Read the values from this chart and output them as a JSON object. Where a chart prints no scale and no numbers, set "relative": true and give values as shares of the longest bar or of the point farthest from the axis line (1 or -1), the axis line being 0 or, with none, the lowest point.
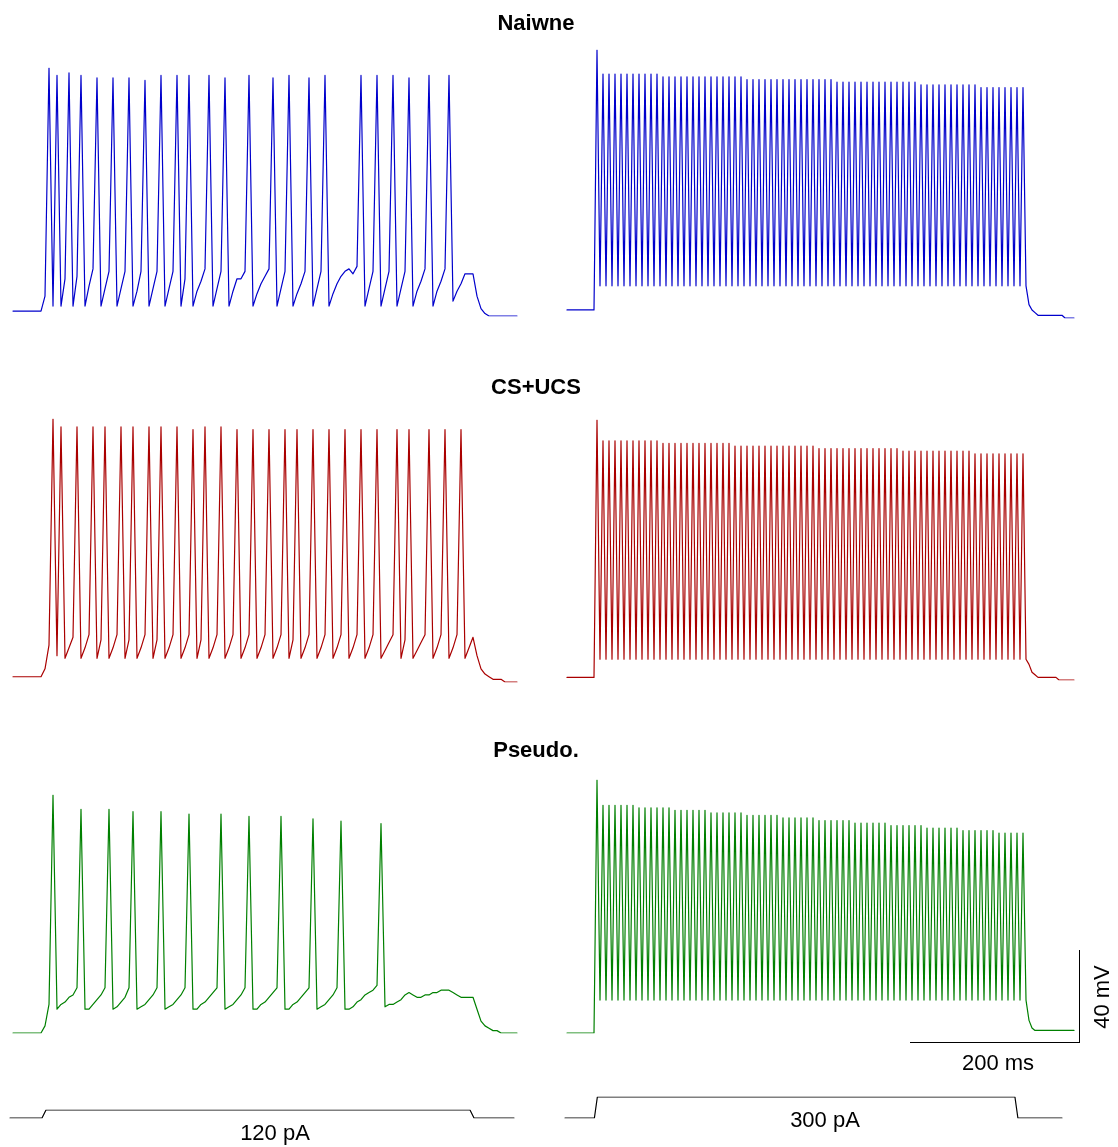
{
  "chart_data": [
    {
      "type": "line",
      "title": "Naiwne",
      "relative": true,
      "color": "#0000cc",
      "categories": [
        null,
        null,
        null,
        null,
        null,
        null,
        null,
        null,
        null,
        null,
        null,
        null,
        null,
        null,
        null,
        null,
        null,
        null,
        null,
        null,
        null,
        null,
        null,
        null,
        null,
        null,
        null,
        null,
        null,
        null,
        null,
        null,
        null,
        null,
        null,
        null,
        null,
        null,
        null,
        null,
        null,
        null,
        null,
        null,
        null,
        null,
        null,
        null,
        null,
        null,
        null,
        null,
        null,
        null,
        null,
        null,
        null,
        null,
        null,
        null,
        null,
        null,
        null,
        null,
        null,
        null,
        null,
        null,
        null,
        null,
        null,
        null,
        null,
        null,
        null,
        null,
        null,
        null,
        null,
        null,
        null,
        null,
        null,
        null,
        null,
        null,
        null,
        null,
        null,
        null,
        null,
        null,
        null,
        null,
        null,
        null,
        null,
        null,
        null,
        null,
        null,
        null,
        null,
        null,
        null,
        null,
        null,
        null,
        null,
        null,
        null,
        null,
        null,
        null,
        null,
        null,
        null,
        null,
        null,
        null,
        null,
        null,
        null,
        null,
        null,
        null,
        null
      ],
      "values": [
        0.02,
        0.02,
        0.02,
        0.02,
        0.02,
        0.02,
        0.02,
        0.02,
        0.08,
        1,
        0.04,
        0.97,
        0.04,
        0.15,
        0.98,
        0.04,
        0.16,
        0.97,
        0.04,
        0.12,
        0.19,
        0.96,
        0.04,
        0.11,
        0.18,
        0.96,
        0.04,
        0.11,
        0.18,
        0.96,
        0.04,
        0.1,
        0.18,
        0.95,
        0.04,
        0.11,
        0.18,
        0.97,
        0.04,
        0.11,
        0.18,
        0.97,
        0.04,
        0.15,
        0.97,
        0.04,
        0.1,
        0.14,
        0.19,
        0.97,
        0.04,
        0.11,
        0.18,
        0.96,
        0.04,
        0.1,
        0.15,
        0.15,
        0.18,
        0.97,
        0.04,
        0.09,
        0.13,
        0.16,
        0.19,
        0.96,
        0.04,
        0.11,
        0.18,
        0.97,
        0.04,
        0.09,
        0.13,
        0.18,
        0.96,
        0.04,
        0.11,
        0.18,
        0.97,
        0.04,
        0.09,
        0.13,
        0.16,
        0.18,
        0.19,
        0.17,
        0.2,
        0.97,
        0.04,
        0.11,
        0.18,
        0.97,
        0.04,
        0.11,
        0.18,
        0.97,
        0.04,
        0.11,
        0.18,
        0.96,
        0.04,
        0.1,
        0.14,
        0.19,
        0.97,
        0.04,
        0.1,
        0.14,
        0.19,
        0.97,
        0.06,
        0.1,
        0.13,
        0.17,
        0.17,
        0.17,
        0.08,
        0.03,
        0.01,
        0,
        0,
        0,
        0,
        0,
        0,
        0,
        0
      ]
    },
    {
      "type": "line",
      "relative": true,
      "color": "#0000cc",
      "categories": [
        null,
        null,
        null,
        null,
        null,
        null,
        null,
        null,
        null,
        null,
        null,
        null,
        null,
        null,
        null,
        null,
        null,
        null,
        null,
        null,
        null,
        null,
        null,
        null,
        null,
        null,
        null,
        null,
        null,
        null,
        null,
        null,
        null,
        null,
        null,
        null,
        null,
        null,
        null,
        null,
        null,
        null,
        null,
        null,
        null,
        null,
        null,
        null,
        null,
        null,
        null,
        null,
        null,
        null,
        null,
        null,
        null,
        null,
        null,
        null,
        null,
        null,
        null,
        null,
        null,
        null,
        null,
        null,
        null,
        null,
        null,
        null,
        null,
        null,
        null,
        null,
        null,
        null,
        null,
        null,
        null,
        null,
        null,
        null,
        null,
        null,
        null,
        null,
        null,
        null,
        null,
        null,
        null,
        null,
        null,
        null,
        null,
        null,
        null,
        null,
        null,
        null,
        null,
        null,
        null,
        null,
        null,
        null,
        null,
        null,
        null,
        null,
        null,
        null,
        null,
        null,
        null,
        null,
        null,
        null,
        null,
        null,
        null,
        null,
        null,
        null,
        null,
        null,
        null,
        null,
        null,
        null,
        null,
        null,
        null,
        null,
        null,
        null,
        null,
        null,
        null,
        null,
        null,
        null,
        null,
        null,
        null,
        null,
        null,
        null,
        null,
        null,
        null,
        null,
        null,
        null,
        null,
        null,
        null,
        null,
        null,
        null,
        null,
        null,
        null,
        null,
        null,
        null,
        null,
        null
      ],
      "values": [
        0.03,
        0.03,
        0.03,
        0.03,
        0.03,
        0.03,
        0.03,
        0.03,
        0.03,
        0.03,
        1,
        0.12,
        0.91,
        0.12,
        0.91,
        0.12,
        0.91,
        0.12,
        0.91,
        0.12,
        0.91,
        0.12,
        0.91,
        0.12,
        0.91,
        0.12,
        0.91,
        0.12,
        0.91,
        0.12,
        0.91,
        0.12,
        0.9,
        0.12,
        0.9,
        0.12,
        0.9,
        0.12,
        0.9,
        0.12,
        0.9,
        0.12,
        0.9,
        0.12,
        0.9,
        0.12,
        0.9,
        0.12,
        0.9,
        0.12,
        0.9,
        0.12,
        0.9,
        0.12,
        0.9,
        0.12,
        0.9,
        0.12,
        0.9,
        0.12,
        0.89,
        0.12,
        0.89,
        0.12,
        0.89,
        0.12,
        0.89,
        0.12,
        0.89,
        0.12,
        0.89,
        0.12,
        0.89,
        0.12,
        0.89,
        0.12,
        0.89,
        0.12,
        0.89,
        0.12,
        0.89,
        0.12,
        0.89,
        0.12,
        0.89,
        0.12,
        0.89,
        0.12,
        0.89,
        0.12,
        0.88,
        0.12,
        0.88,
        0.12,
        0.88,
        0.12,
        0.88,
        0.12,
        0.88,
        0.12,
        0.88,
        0.12,
        0.88,
        0.12,
        0.88,
        0.12,
        0.88,
        0.12,
        0.88,
        0.12,
        0.88,
        0.12,
        0.88,
        0.12,
        0.88,
        0.12,
        0.88,
        0.12,
        0.87,
        0.12,
        0.87,
        0.12,
        0.87,
        0.12,
        0.87,
        0.12,
        0.87,
        0.12,
        0.87,
        0.12,
        0.87,
        0.12,
        0.87,
        0.12,
        0.87,
        0.12,
        0.87,
        0.12,
        0.86,
        0.12,
        0.86,
        0.12,
        0.86,
        0.12,
        0.86,
        0.12,
        0.86,
        0.12,
        0.86,
        0.12,
        0.86,
        0.12,
        0.86,
        0.12,
        0.05,
        0.03,
        0.02,
        0.01,
        0.01,
        0.01,
        0.01,
        0.01,
        0.01,
        0.01,
        0.01,
        0.01,
        0,
        0,
        0,
        0
      ]
    },
    {
      "type": "line",
      "title": "CS+UCS",
      "relative": true,
      "color": "#aa0000",
      "categories": [
        null,
        null,
        null,
        null,
        null,
        null,
        null,
        null,
        null,
        null,
        null,
        null,
        null,
        null,
        null,
        null,
        null,
        null,
        null,
        null,
        null,
        null,
        null,
        null,
        null,
        null,
        null,
        null,
        null,
        null,
        null,
        null,
        null,
        null,
        null,
        null,
        null,
        null,
        null,
        null,
        null,
        null,
        null,
        null,
        null,
        null,
        null,
        null,
        null,
        null,
        null,
        null,
        null,
        null,
        null,
        null,
        null,
        null,
        null,
        null,
        null,
        null,
        null,
        null,
        null,
        null,
        null,
        null,
        null,
        null,
        null,
        null,
        null,
        null,
        null,
        null,
        null,
        null,
        null,
        null,
        null,
        null,
        null,
        null,
        null,
        null,
        null,
        null,
        null,
        null,
        null,
        null,
        null,
        null,
        null,
        null,
        null,
        null,
        null,
        null,
        null,
        null,
        null,
        null,
        null,
        null,
        null,
        null,
        null,
        null,
        null,
        null,
        null,
        null,
        null,
        null,
        null,
        null,
        null,
        null,
        null,
        null,
        null,
        null,
        null,
        null,
        null
      ],
      "values": [
        0.02,
        0.02,
        0.02,
        0.02,
        0.02,
        0.02,
        0.02,
        0.02,
        0.05,
        0.14,
        1,
        0.1,
        0.97,
        0.09,
        0.13,
        0.17,
        0.97,
        0.09,
        0.13,
        0.18,
        0.97,
        0.09,
        0.16,
        0.97,
        0.09,
        0.13,
        0.18,
        0.97,
        0.09,
        0.16,
        0.97,
        0.09,
        0.13,
        0.18,
        0.97,
        0.09,
        0.16,
        0.97,
        0.09,
        0.13,
        0.18,
        0.97,
        0.09,
        0.13,
        0.18,
        0.96,
        0.09,
        0.16,
        0.97,
        0.09,
        0.13,
        0.18,
        0.97,
        0.09,
        0.13,
        0.18,
        0.96,
        0.09,
        0.13,
        0.18,
        0.96,
        0.09,
        0.13,
        0.18,
        0.96,
        0.09,
        0.13,
        0.18,
        0.96,
        0.09,
        0.16,
        0.96,
        0.09,
        0.13,
        0.18,
        0.96,
        0.09,
        0.13,
        0.18,
        0.96,
        0.09,
        0.13,
        0.18,
        0.96,
        0.09,
        0.13,
        0.18,
        0.96,
        0.09,
        0.13,
        0.18,
        0.96,
        0.09,
        0.12,
        0.15,
        0.18,
        0.96,
        0.09,
        0.16,
        0.96,
        0.09,
        0.12,
        0.15,
        0.18,
        0.96,
        0.09,
        0.13,
        0.18,
        0.96,
        0.09,
        0.13,
        0.18,
        0.96,
        0.09,
        0.13,
        0.17,
        0.1,
        0.05,
        0.03,
        0.02,
        0.01,
        0.01,
        0.01,
        0,
        0,
        0,
        0
      ]
    },
    {
      "type": "line",
      "relative": true,
      "color": "#aa0000",
      "categories": [
        null,
        null,
        null,
        null,
        null,
        null,
        null,
        null,
        null,
        null,
        null,
        null,
        null,
        null,
        null,
        null,
        null,
        null,
        null,
        null,
        null,
        null,
        null,
        null,
        null,
        null,
        null,
        null,
        null,
        null,
        null,
        null,
        null,
        null,
        null,
        null,
        null,
        null,
        null,
        null,
        null,
        null,
        null,
        null,
        null,
        null,
        null,
        null,
        null,
        null,
        null,
        null,
        null,
        null,
        null,
        null,
        null,
        null,
        null,
        null,
        null,
        null,
        null,
        null,
        null,
        null,
        null,
        null,
        null,
        null,
        null,
        null,
        null,
        null,
        null,
        null,
        null,
        null,
        null,
        null,
        null,
        null,
        null,
        null,
        null,
        null,
        null,
        null,
        null,
        null,
        null,
        null,
        null,
        null,
        null,
        null,
        null,
        null,
        null,
        null,
        null,
        null,
        null,
        null,
        null,
        null,
        null,
        null,
        null,
        null,
        null,
        null,
        null,
        null,
        null,
        null,
        null,
        null,
        null,
        null,
        null,
        null,
        null,
        null,
        null,
        null,
        null,
        null,
        null,
        null,
        null,
        null,
        null,
        null,
        null,
        null,
        null,
        null,
        null,
        null,
        null,
        null,
        null,
        null,
        null,
        null,
        null,
        null,
        null,
        null,
        null,
        null,
        null,
        null,
        null,
        null,
        null,
        null,
        null,
        null,
        null,
        null,
        null,
        null,
        null,
        null,
        null,
        null,
        null,
        null
      ],
      "values": [
        0.01,
        0.01,
        0.01,
        0.01,
        0.01,
        0.01,
        0.01,
        0.01,
        0.01,
        0.01,
        1,
        0.08,
        0.92,
        0.08,
        0.92,
        0.08,
        0.92,
        0.08,
        0.92,
        0.08,
        0.92,
        0.08,
        0.92,
        0.08,
        0.92,
        0.08,
        0.92,
        0.08,
        0.92,
        0.08,
        0.92,
        0.08,
        0.91,
        0.08,
        0.91,
        0.08,
        0.91,
        0.08,
        0.91,
        0.08,
        0.91,
        0.08,
        0.91,
        0.08,
        0.91,
        0.08,
        0.91,
        0.08,
        0.91,
        0.08,
        0.91,
        0.08,
        0.91,
        0.08,
        0.91,
        0.08,
        0.9,
        0.08,
        0.9,
        0.08,
        0.9,
        0.08,
        0.9,
        0.08,
        0.9,
        0.08,
        0.9,
        0.08,
        0.9,
        0.08,
        0.9,
        0.08,
        0.9,
        0.08,
        0.9,
        0.08,
        0.9,
        0.08,
        0.9,
        0.08,
        0.9,
        0.08,
        0.9,
        0.08,
        0.89,
        0.08,
        0.89,
        0.08,
        0.89,
        0.08,
        0.89,
        0.08,
        0.89,
        0.08,
        0.89,
        0.08,
        0.89,
        0.08,
        0.89,
        0.08,
        0.89,
        0.08,
        0.89,
        0.08,
        0.89,
        0.08,
        0.89,
        0.08,
        0.89,
        0.08,
        0.89,
        0.08,
        0.88,
        0.08,
        0.88,
        0.08,
        0.88,
        0.08,
        0.88,
        0.08,
        0.88,
        0.08,
        0.88,
        0.08,
        0.88,
        0.08,
        0.88,
        0.08,
        0.88,
        0.08,
        0.88,
        0.08,
        0.88,
        0.08,
        0.88,
        0.08,
        0.87,
        0.08,
        0.87,
        0.08,
        0.87,
        0.08,
        0.87,
        0.08,
        0.87,
        0.08,
        0.87,
        0.08,
        0.87,
        0.08,
        0.87,
        0.08,
        0.87,
        0.08,
        0.06,
        0.03,
        0.02,
        0.01,
        0.01,
        0.01,
        0.01,
        0.01,
        0.01,
        0.01,
        0,
        0,
        0,
        0,
        0,
        0
      ]
    },
    {
      "type": "line",
      "title": "Pseudo.",
      "relative": true,
      "color": "#008000",
      "categories": [
        null,
        null,
        null,
        null,
        null,
        null,
        null,
        null,
        null,
        null,
        null,
        null,
        null,
        null,
        null,
        null,
        null,
        null,
        null,
        null,
        null,
        null,
        null,
        null,
        null,
        null,
        null,
        null,
        null,
        null,
        null,
        null,
        null,
        null,
        null,
        null,
        null,
        null,
        null,
        null,
        null,
        null,
        null,
        null,
        null,
        null,
        null,
        null,
        null,
        null,
        null,
        null,
        null,
        null,
        null,
        null,
        null,
        null,
        null,
        null,
        null,
        null,
        null,
        null,
        null,
        null,
        null,
        null,
        null,
        null,
        null,
        null,
        null,
        null,
        null,
        null,
        null,
        null,
        null,
        null,
        null,
        null,
        null,
        null,
        null,
        null,
        null,
        null,
        null,
        null,
        null,
        null,
        null,
        null,
        null,
        null,
        null,
        null,
        null,
        null,
        null,
        null,
        null,
        null,
        null,
        null,
        null,
        null,
        null,
        null,
        null,
        null,
        null,
        null,
        null,
        null,
        null,
        null,
        null,
        null,
        null,
        null,
        null,
        null,
        null,
        null,
        null
      ],
      "values": [
        0,
        0,
        0,
        0,
        0,
        0,
        0,
        0,
        0.03,
        0.12,
        1,
        0.1,
        0.12,
        0.13,
        0.15,
        0.16,
        0.19,
        0.94,
        0.1,
        0.1,
        0.12,
        0.14,
        0.16,
        0.19,
        0.94,
        0.1,
        0.11,
        0.13,
        0.15,
        0.19,
        0.93,
        0.1,
        0.11,
        0.12,
        0.14,
        0.16,
        0.19,
        0.93,
        0.1,
        0.11,
        0.12,
        0.14,
        0.16,
        0.19,
        0.92,
        0.1,
        0.1,
        0.12,
        0.13,
        0.15,
        0.17,
        0.19,
        0.92,
        0.1,
        0.11,
        0.12,
        0.14,
        0.16,
        0.19,
        0.91,
        0.1,
        0.1,
        0.12,
        0.13,
        0.15,
        0.17,
        0.19,
        0.91,
        0.1,
        0.1,
        0.12,
        0.13,
        0.15,
        0.17,
        0.19,
        0.9,
        0.1,
        0.11,
        0.12,
        0.14,
        0.16,
        0.19,
        0.89,
        0.1,
        0.1,
        0.11,
        0.13,
        0.14,
        0.16,
        0.17,
        0.18,
        0.2,
        0.88,
        0.11,
        0.12,
        0.12,
        0.13,
        0.14,
        0.16,
        0.17,
        0.16,
        0.15,
        0.15,
        0.16,
        0.16,
        0.17,
        0.17,
        0.18,
        0.18,
        0.18,
        0.17,
        0.16,
        0.15,
        0.15,
        0.15,
        0.15,
        0.1,
        0.05,
        0.03,
        0.02,
        0.01,
        0.01,
        0,
        0,
        0,
        0,
        0
      ]
    },
    {
      "type": "line",
      "relative": true,
      "color": "#008000",
      "annotations": [
        "40 mV",
        "200 ms"
      ],
      "categories": [
        null,
        null,
        null,
        null,
        null,
        null,
        null,
        null,
        null,
        null,
        null,
        null,
        null,
        null,
        null,
        null,
        null,
        null,
        null,
        null,
        null,
        null,
        null,
        null,
        null,
        null,
        null,
        null,
        null,
        null,
        null,
        null,
        null,
        null,
        null,
        null,
        null,
        null,
        null,
        null,
        null,
        null,
        null,
        null,
        null,
        null,
        null,
        null,
        null,
        null,
        null,
        null,
        null,
        null,
        null,
        null,
        null,
        null,
        null,
        null,
        null,
        null,
        null,
        null,
        null,
        null,
        null,
        null,
        null,
        null,
        null,
        null,
        null,
        null,
        null,
        null,
        null,
        null,
        null,
        null,
        null,
        null,
        null,
        null,
        null,
        null,
        null,
        null,
        null,
        null,
        null,
        null,
        null,
        null,
        null,
        null,
        null,
        null,
        null,
        null,
        null,
        null,
        null,
        null,
        null,
        null,
        null,
        null,
        null,
        null,
        null,
        null,
        null,
        null,
        null,
        null,
        null,
        null,
        null,
        null,
        null,
        null,
        null,
        null,
        null,
        null,
        null,
        null,
        null,
        null,
        null,
        null,
        null,
        null,
        null,
        null,
        null,
        null,
        null,
        null,
        null,
        null,
        null,
        null,
        null,
        null,
        null,
        null,
        null,
        null,
        null,
        null,
        null,
        null,
        null,
        null,
        null,
        null,
        null,
        null,
        null,
        null,
        null,
        null,
        null,
        null,
        null,
        null,
        null,
        null
      ],
      "values": [
        0,
        0,
        0,
        0,
        0,
        0,
        0,
        0,
        0,
        0,
        1,
        0.13,
        0.9,
        0.13,
        0.9,
        0.13,
        0.9,
        0.13,
        0.9,
        0.13,
        0.9,
        0.13,
        0.9,
        0.13,
        0.89,
        0.13,
        0.89,
        0.13,
        0.89,
        0.13,
        0.89,
        0.13,
        0.89,
        0.13,
        0.89,
        0.13,
        0.88,
        0.13,
        0.88,
        0.13,
        0.88,
        0.13,
        0.88,
        0.13,
        0.88,
        0.13,
        0.88,
        0.13,
        0.87,
        0.13,
        0.87,
        0.13,
        0.87,
        0.13,
        0.87,
        0.13,
        0.87,
        0.13,
        0.87,
        0.13,
        0.86,
        0.13,
        0.86,
        0.13,
        0.86,
        0.13,
        0.86,
        0.13,
        0.86,
        0.13,
        0.86,
        0.13,
        0.85,
        0.13,
        0.85,
        0.13,
        0.85,
        0.13,
        0.85,
        0.13,
        0.85,
        0.13,
        0.85,
        0.13,
        0.84,
        0.13,
        0.84,
        0.13,
        0.84,
        0.13,
        0.84,
        0.13,
        0.84,
        0.13,
        0.84,
        0.13,
        0.83,
        0.13,
        0.83,
        0.13,
        0.83,
        0.13,
        0.83,
        0.13,
        0.83,
        0.13,
        0.83,
        0.13,
        0.82,
        0.13,
        0.82,
        0.13,
        0.82,
        0.13,
        0.82,
        0.13,
        0.82,
        0.13,
        0.82,
        0.13,
        0.81,
        0.13,
        0.81,
        0.13,
        0.81,
        0.13,
        0.81,
        0.13,
        0.81,
        0.13,
        0.81,
        0.13,
        0.8,
        0.13,
        0.8,
        0.13,
        0.8,
        0.13,
        0.8,
        0.13,
        0.8,
        0.13,
        0.8,
        0.13,
        0.79,
        0.13,
        0.79,
        0.13,
        0.79,
        0.13,
        0.79,
        0.13,
        0.79,
        0.13,
        0.05,
        0.02,
        0.01,
        0.01,
        0.01,
        0.01,
        0.01,
        0.01,
        0.01,
        0.01,
        0.01,
        0.01,
        0.01,
        0.01,
        0.01,
        0.01
      ]
    },
    {
      "type": "line",
      "relative": true,
      "color": "#000000",
      "annotations": [
        "120 pA"
      ],
      "categories": [
        null,
        null,
        null,
        null,
        null,
        null,
        null,
        null,
        null,
        null,
        null,
        null,
        null,
        null,
        null,
        null,
        null,
        null,
        null,
        null,
        null,
        null,
        null,
        null,
        null,
        null,
        null,
        null,
        null,
        null,
        null,
        null,
        null,
        null,
        null,
        null,
        null,
        null,
        null,
        null,
        null,
        null,
        null,
        null,
        null,
        null,
        null,
        null,
        null,
        null,
        null,
        null,
        null,
        null,
        null,
        null,
        null,
        null,
        null,
        null,
        null,
        null,
        null,
        null,
        null,
        null,
        null,
        null,
        null,
        null,
        null,
        null,
        null,
        null,
        null,
        null,
        null,
        null,
        null,
        null,
        null,
        null,
        null,
        null,
        null,
        null,
        null,
        null,
        null,
        null,
        null,
        null,
        null,
        null,
        null,
        null,
        null,
        null,
        null,
        null,
        null,
        null,
        null,
        null,
        null,
        null,
        null,
        null,
        null,
        null,
        null,
        null,
        null,
        null,
        null,
        null,
        null,
        null,
        null,
        null,
        null,
        null,
        null,
        null,
        null,
        null,
        null
      ],
      "values": [
        0,
        0,
        0,
        0,
        0,
        0,
        0,
        0,
        0,
        1,
        1,
        1,
        1,
        1,
        1,
        1,
        1,
        1,
        1,
        1,
        1,
        1,
        1,
        1,
        1,
        1,
        1,
        1,
        1,
        1,
        1,
        1,
        1,
        1,
        1,
        1,
        1,
        1,
        1,
        1,
        1,
        1,
        1,
        1,
        1,
        1,
        1,
        1,
        1,
        1,
        1,
        1,
        1,
        1,
        1,
        1,
        1,
        1,
        1,
        1,
        1,
        1,
        1,
        1,
        1,
        1,
        1,
        1,
        1,
        1,
        1,
        1,
        1,
        1,
        1,
        1,
        1,
        1,
        1,
        1,
        1,
        1,
        1,
        1,
        1,
        1,
        1,
        1,
        1,
        1,
        1,
        1,
        1,
        1,
        1,
        1,
        1,
        1,
        1,
        1,
        1,
        1,
        1,
        1,
        1,
        1,
        1,
        1,
        1,
        1,
        1,
        1,
        1,
        1,
        1,
        1,
        0,
        0,
        0,
        0,
        0,
        0,
        0,
        0,
        0,
        0,
        0
      ]
    },
    {
      "type": "line",
      "relative": true,
      "color": "#000000",
      "annotations": [
        "300 pA"
      ],
      "categories": [
        null,
        null,
        null,
        null,
        null,
        null,
        null,
        null,
        null,
        null,
        null,
        null,
        null,
        null,
        null,
        null,
        null,
        null,
        null,
        null,
        null,
        null,
        null,
        null,
        null,
        null,
        null,
        null,
        null,
        null,
        null,
        null,
        null,
        null,
        null,
        null,
        null,
        null,
        null,
        null,
        null,
        null,
        null,
        null,
        null,
        null,
        null,
        null,
        null,
        null,
        null,
        null,
        null,
        null,
        null,
        null,
        null,
        null,
        null,
        null,
        null,
        null,
        null,
        null,
        null,
        null,
        null,
        null,
        null,
        null,
        null,
        null,
        null,
        null,
        null,
        null,
        null,
        null,
        null,
        null,
        null,
        null,
        null,
        null,
        null,
        null,
        null,
        null,
        null,
        null,
        null,
        null,
        null,
        null,
        null,
        null,
        null,
        null,
        null,
        null,
        null,
        null,
        null,
        null,
        null,
        null,
        null,
        null,
        null,
        null,
        null,
        null,
        null,
        null,
        null,
        null,
        null,
        null,
        null,
        null,
        null,
        null,
        null,
        null,
        null,
        null,
        null,
        null,
        null,
        null,
        null,
        null,
        null,
        null,
        null,
        null,
        null,
        null,
        null,
        null,
        null,
        null,
        null,
        null,
        null,
        null,
        null,
        null,
        null,
        null,
        null,
        null,
        null,
        null,
        null,
        null,
        null,
        null,
        null,
        null,
        null,
        null,
        null,
        null,
        null,
        null,
        null,
        null,
        null,
        null
      ],
      "values": [
        0,
        0,
        0,
        0,
        0,
        0,
        0,
        0,
        0,
        0,
        0,
        1,
        1,
        1,
        1,
        1,
        1,
        1,
        1,
        1,
        1,
        1,
        1,
        1,
        1,
        1,
        1,
        1,
        1,
        1,
        1,
        1,
        1,
        1,
        1,
        1,
        1,
        1,
        1,
        1,
        1,
        1,
        1,
        1,
        1,
        1,
        1,
        1,
        1,
        1,
        1,
        1,
        1,
        1,
        1,
        1,
        1,
        1,
        1,
        1,
        1,
        1,
        1,
        1,
        1,
        1,
        1,
        1,
        1,
        1,
        1,
        1,
        1,
        1,
        1,
        1,
        1,
        1,
        1,
        1,
        1,
        1,
        1,
        1,
        1,
        1,
        1,
        1,
        1,
        1,
        1,
        1,
        1,
        1,
        1,
        1,
        1,
        1,
        1,
        1,
        1,
        1,
        1,
        1,
        1,
        1,
        1,
        1,
        1,
        1,
        1,
        1,
        1,
        1,
        1,
        1,
        1,
        1,
        1,
        1,
        1,
        1,
        1,
        1,
        1,
        1,
        1,
        1,
        1,
        1,
        1,
        1,
        1,
        1,
        1,
        1,
        1,
        1,
        1,
        1,
        1,
        1,
        1,
        1,
        1,
        1,
        1,
        1,
        1,
        1,
        1,
        1,
        1,
        1,
        0,
        0,
        0,
        0,
        0,
        0,
        0,
        0,
        0,
        0,
        0,
        0,
        0,
        0,
        0,
        0
      ]
    }
  ]
}
